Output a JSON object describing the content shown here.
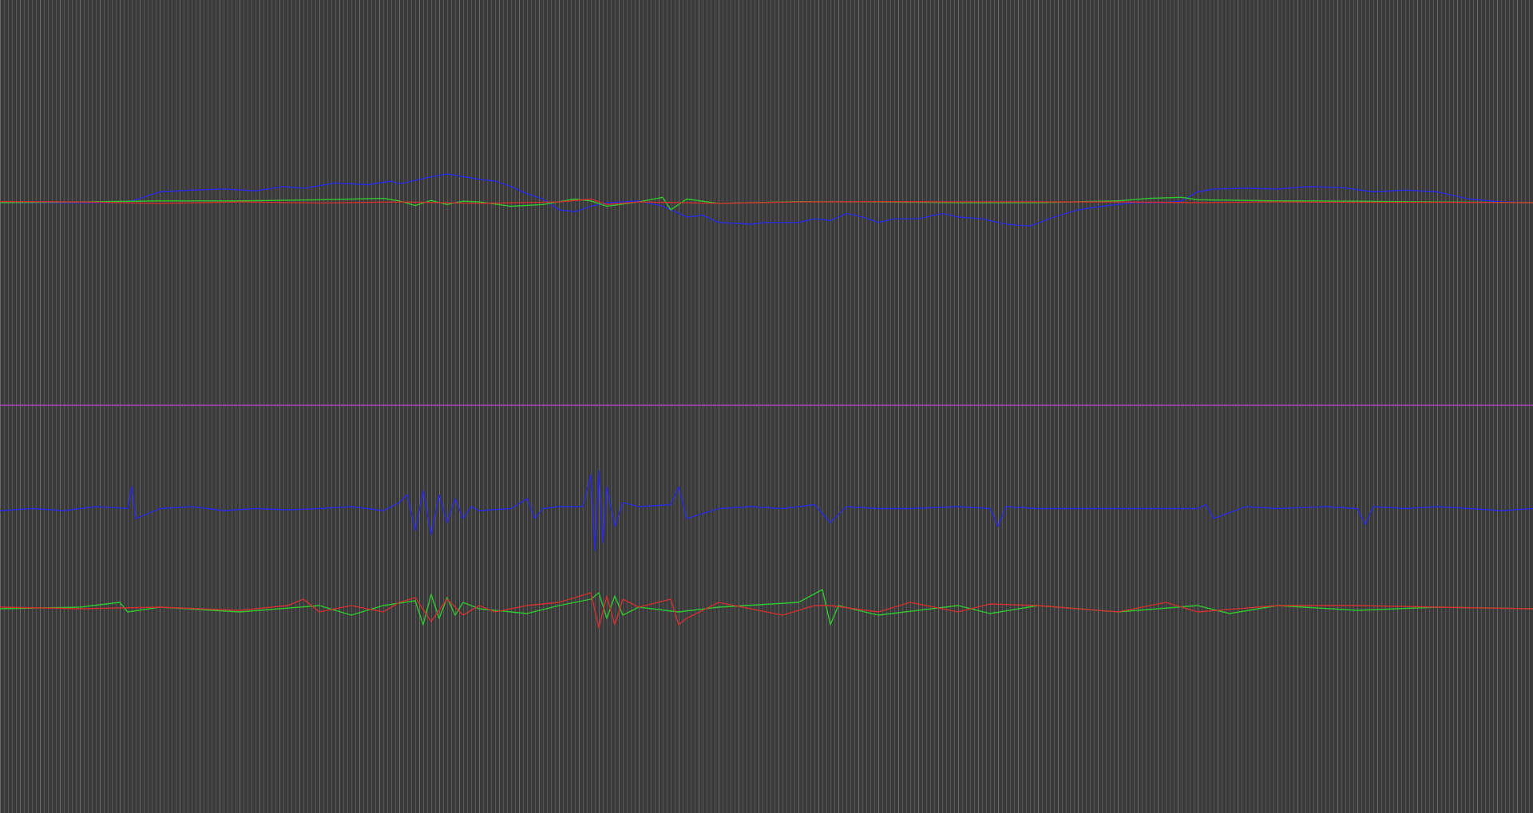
{
  "chart_data": {
    "type": "line",
    "title": "",
    "xlabel": "",
    "ylabel": "",
    "grid": true,
    "legend": "none",
    "colors": {
      "background": "#3a3a3a",
      "grid": "#7a7a7a",
      "divider": "#b040c0",
      "blue": "#2a2ae0",
      "green": "#30c830",
      "red": "#d03030"
    },
    "panels": [
      {
        "name": "upper",
        "baseline": 0,
        "ylim": [
          -1,
          1
        ],
        "series": [
          {
            "color": "blue",
            "x": [
              0,
              40,
              80,
              110,
              140,
              165,
              200,
              240,
              280,
              320,
              355,
              380,
              420,
              460,
              490,
              500,
              520,
              540,
              560,
              600,
              620,
              640,
              660,
              680,
              700,
              720,
              740,
              760,
              800,
              830,
              860,
              880,
              900,
              940,
              960,
              1000,
              1020,
              1040,
              1060,
              1080,
              1100,
              1120,
              1150,
              1180,
              1200,
              1230,
              1260,
              1290,
              1320,
              1350,
              1380,
              1400,
              1420,
              1440,
              1460,
              1480,
              1500,
              1520,
              1560,
              1600,
              1640,
              1680,
              1720,
              1760,
              1800,
              1840,
              1880,
              1920
            ],
            "y": [
              0,
              0,
              0,
              0,
              0,
              0.05,
              0.3,
              0.35,
              0.38,
              0.33,
              0.45,
              0.4,
              0.55,
              0.5,
              0.6,
              0.52,
              0.62,
              0.72,
              0.8,
              0.65,
              0.6,
              0.45,
              0.25,
              0.1,
              -0.2,
              -0.25,
              -0.1,
              0,
              0.05,
              -0.1,
              -0.4,
              -0.35,
              -0.55,
              -0.6,
              -0.55,
              -0.55,
              -0.45,
              -0.5,
              -0.3,
              -0.4,
              -0.55,
              -0.45,
              -0.45,
              -0.3,
              -0.4,
              -0.45,
              -0.6,
              -0.65,
              -0.4,
              -0.2,
              -0.1,
              -0.05,
              0,
              0,
              0,
              0.05,
              0.3,
              0.38,
              0.4,
              0.38,
              0.45,
              0.42,
              0.3,
              0.35,
              0.3,
              0.1,
              0.02,
              0
            ]
          },
          {
            "color": "green",
            "x": [
              0,
              100,
              200,
              300,
              400,
              480,
              500,
              520,
              540,
              560,
              580,
              600,
              640,
              680,
              720,
              740,
              760,
              800,
              830,
              840,
              860,
              900,
              1000,
              1100,
              1200,
              1300,
              1400,
              1440,
              1480,
              1500,
              1600,
              1700,
              1800,
              1920
            ],
            "y": [
              0,
              0.02,
              0.05,
              0.05,
              0.08,
              0.12,
              0.05,
              -0.08,
              0.06,
              -0.05,
              0.04,
              0.02,
              -0.1,
              -0.05,
              0.1,
              0.05,
              -0.1,
              0.02,
              0.15,
              -0.2,
              0.1,
              -0.02,
              0.03,
              0.02,
              0,
              0,
              0.05,
              0.12,
              0.15,
              0.08,
              0.05,
              0.04,
              0.02,
              0
            ]
          },
          {
            "color": "red",
            "x": [
              0,
              100,
              200,
              300,
              400,
              500,
              600,
              700,
              740,
              760,
              800,
              900,
              1000,
              1100,
              1200,
              1300,
              1400,
              1500,
              1600,
              1700,
              1800,
              1920
            ],
            "y": [
              0.03,
              0.02,
              -0.02,
              0.02,
              -0.01,
              0.02,
              -0.02,
              0.02,
              0.1,
              -0.05,
              0.02,
              -0.02,
              0.02,
              0.03,
              0.02,
              0.02,
              0.02,
              0,
              0.02,
              0.01,
              0.01,
              0
            ]
          }
        ]
      },
      {
        "name": "middle",
        "baseline": 0,
        "ylim": [
          -1,
          1
        ],
        "series": [
          {
            "color": "blue",
            "x": [
              0,
              40,
              80,
              120,
              160,
              165,
              170,
              200,
              240,
              280,
              320,
              360,
              400,
              440,
              480,
              500,
              510,
              520,
              530,
              540,
              550,
              560,
              570,
              580,
              590,
              600,
              640,
              660,
              670,
              680,
              700,
              730,
              740,
              745,
              750,
              755,
              760,
              770,
              780,
              800,
              840,
              850,
              860,
              900,
              940,
              980,
              1020,
              1040,
              1060,
              1100,
              1140,
              1200,
              1240,
              1250,
              1260,
              1300,
              1380,
              1480,
              1500,
              1510,
              1520,
              1560,
              1600,
              1660,
              1700,
              1710,
              1720,
              1760,
              1800,
              1840,
              1880,
              1920
            ],
            "y": [
              0,
              0.05,
              0,
              0.1,
              0.05,
              0.6,
              -0.2,
              0.05,
              0.1,
              0,
              0.05,
              0.02,
              0.05,
              0.1,
              0,
              0.2,
              0.4,
              -0.5,
              0.5,
              -0.6,
              0.4,
              -0.3,
              0.3,
              -0.2,
              0.1,
              0,
              0.05,
              0.3,
              -0.2,
              0.05,
              0.1,
              0.1,
              0.9,
              -1,
              1,
              -0.8,
              0.6,
              -0.4,
              0.2,
              0.1,
              0.15,
              0.6,
              -0.2,
              0.05,
              0.1,
              0.05,
              0.15,
              -0.3,
              0.1,
              0.05,
              0.05,
              0.1,
              0.05,
              -0.4,
              0.1,
              0.05,
              0.05,
              0.05,
              0.05,
              0.15,
              -0.2,
              0.1,
              0.05,
              0.1,
              0.05,
              -0.35,
              0.1,
              0.05,
              0.1,
              0.05,
              0,
              0.05
            ]
          }
        ]
      },
      {
        "name": "lower",
        "baseline": 0,
        "ylim": [
          -1,
          1
        ],
        "series": [
          {
            "color": "green",
            "x": [
              0,
              100,
              150,
              160,
              200,
              300,
              400,
              440,
              480,
              520,
              530,
              540,
              550,
              560,
              570,
              580,
              600,
              660,
              700,
              740,
              750,
              760,
              770,
              780,
              800,
              850,
              900,
              1000,
              1030,
              1040,
              1050,
              1100,
              1200,
              1240,
              1300,
              1400,
              1500,
              1540,
              1600,
              1700,
              1800,
              1920
            ],
            "y": [
              0,
              0.05,
              0.2,
              -0.1,
              0.05,
              -0.1,
              0.1,
              -0.2,
              0.1,
              0.25,
              -0.5,
              0.45,
              -0.3,
              0.35,
              -0.2,
              0.2,
              0,
              -0.15,
              0.1,
              0.3,
              0.5,
              -0.3,
              0.4,
              -0.2,
              0.05,
              -0.1,
              0.05,
              0.2,
              0.6,
              -0.5,
              0.1,
              -0.2,
              0.1,
              -0.15,
              0.1,
              -0.1,
              0.1,
              -0.15,
              0.1,
              -0.05,
              0.05,
              0
            ]
          },
          {
            "color": "red",
            "x": [
              0,
              100,
              200,
              300,
              360,
              380,
              400,
              440,
              480,
              500,
              520,
              540,
              560,
              580,
              600,
              620,
              660,
              700,
              740,
              750,
              760,
              770,
              780,
              800,
              840,
              850,
              860,
              900,
              980,
              1020,
              1040,
              1100,
              1140,
              1200,
              1240,
              1300,
              1400,
              1460,
              1500,
              1600,
              1700,
              1800,
              1920
            ],
            "y": [
              0.05,
              0,
              0.05,
              -0.05,
              0.1,
              0.3,
              -0.1,
              0.1,
              -0.1,
              0.2,
              0.35,
              -0.4,
              0.3,
              -0.2,
              0.1,
              -0.1,
              0.1,
              0.2,
              0.5,
              -0.6,
              0.4,
              -0.5,
              0.3,
              0.05,
              0.3,
              -0.5,
              -0.3,
              0.2,
              -0.2,
              0.1,
              0.1,
              -0.1,
              0.2,
              -0.1,
              0.15,
              0.1,
              -0.1,
              0.2,
              -0.1,
              0.1,
              0.1,
              0.05,
              0
            ]
          }
        ]
      }
    ]
  }
}
